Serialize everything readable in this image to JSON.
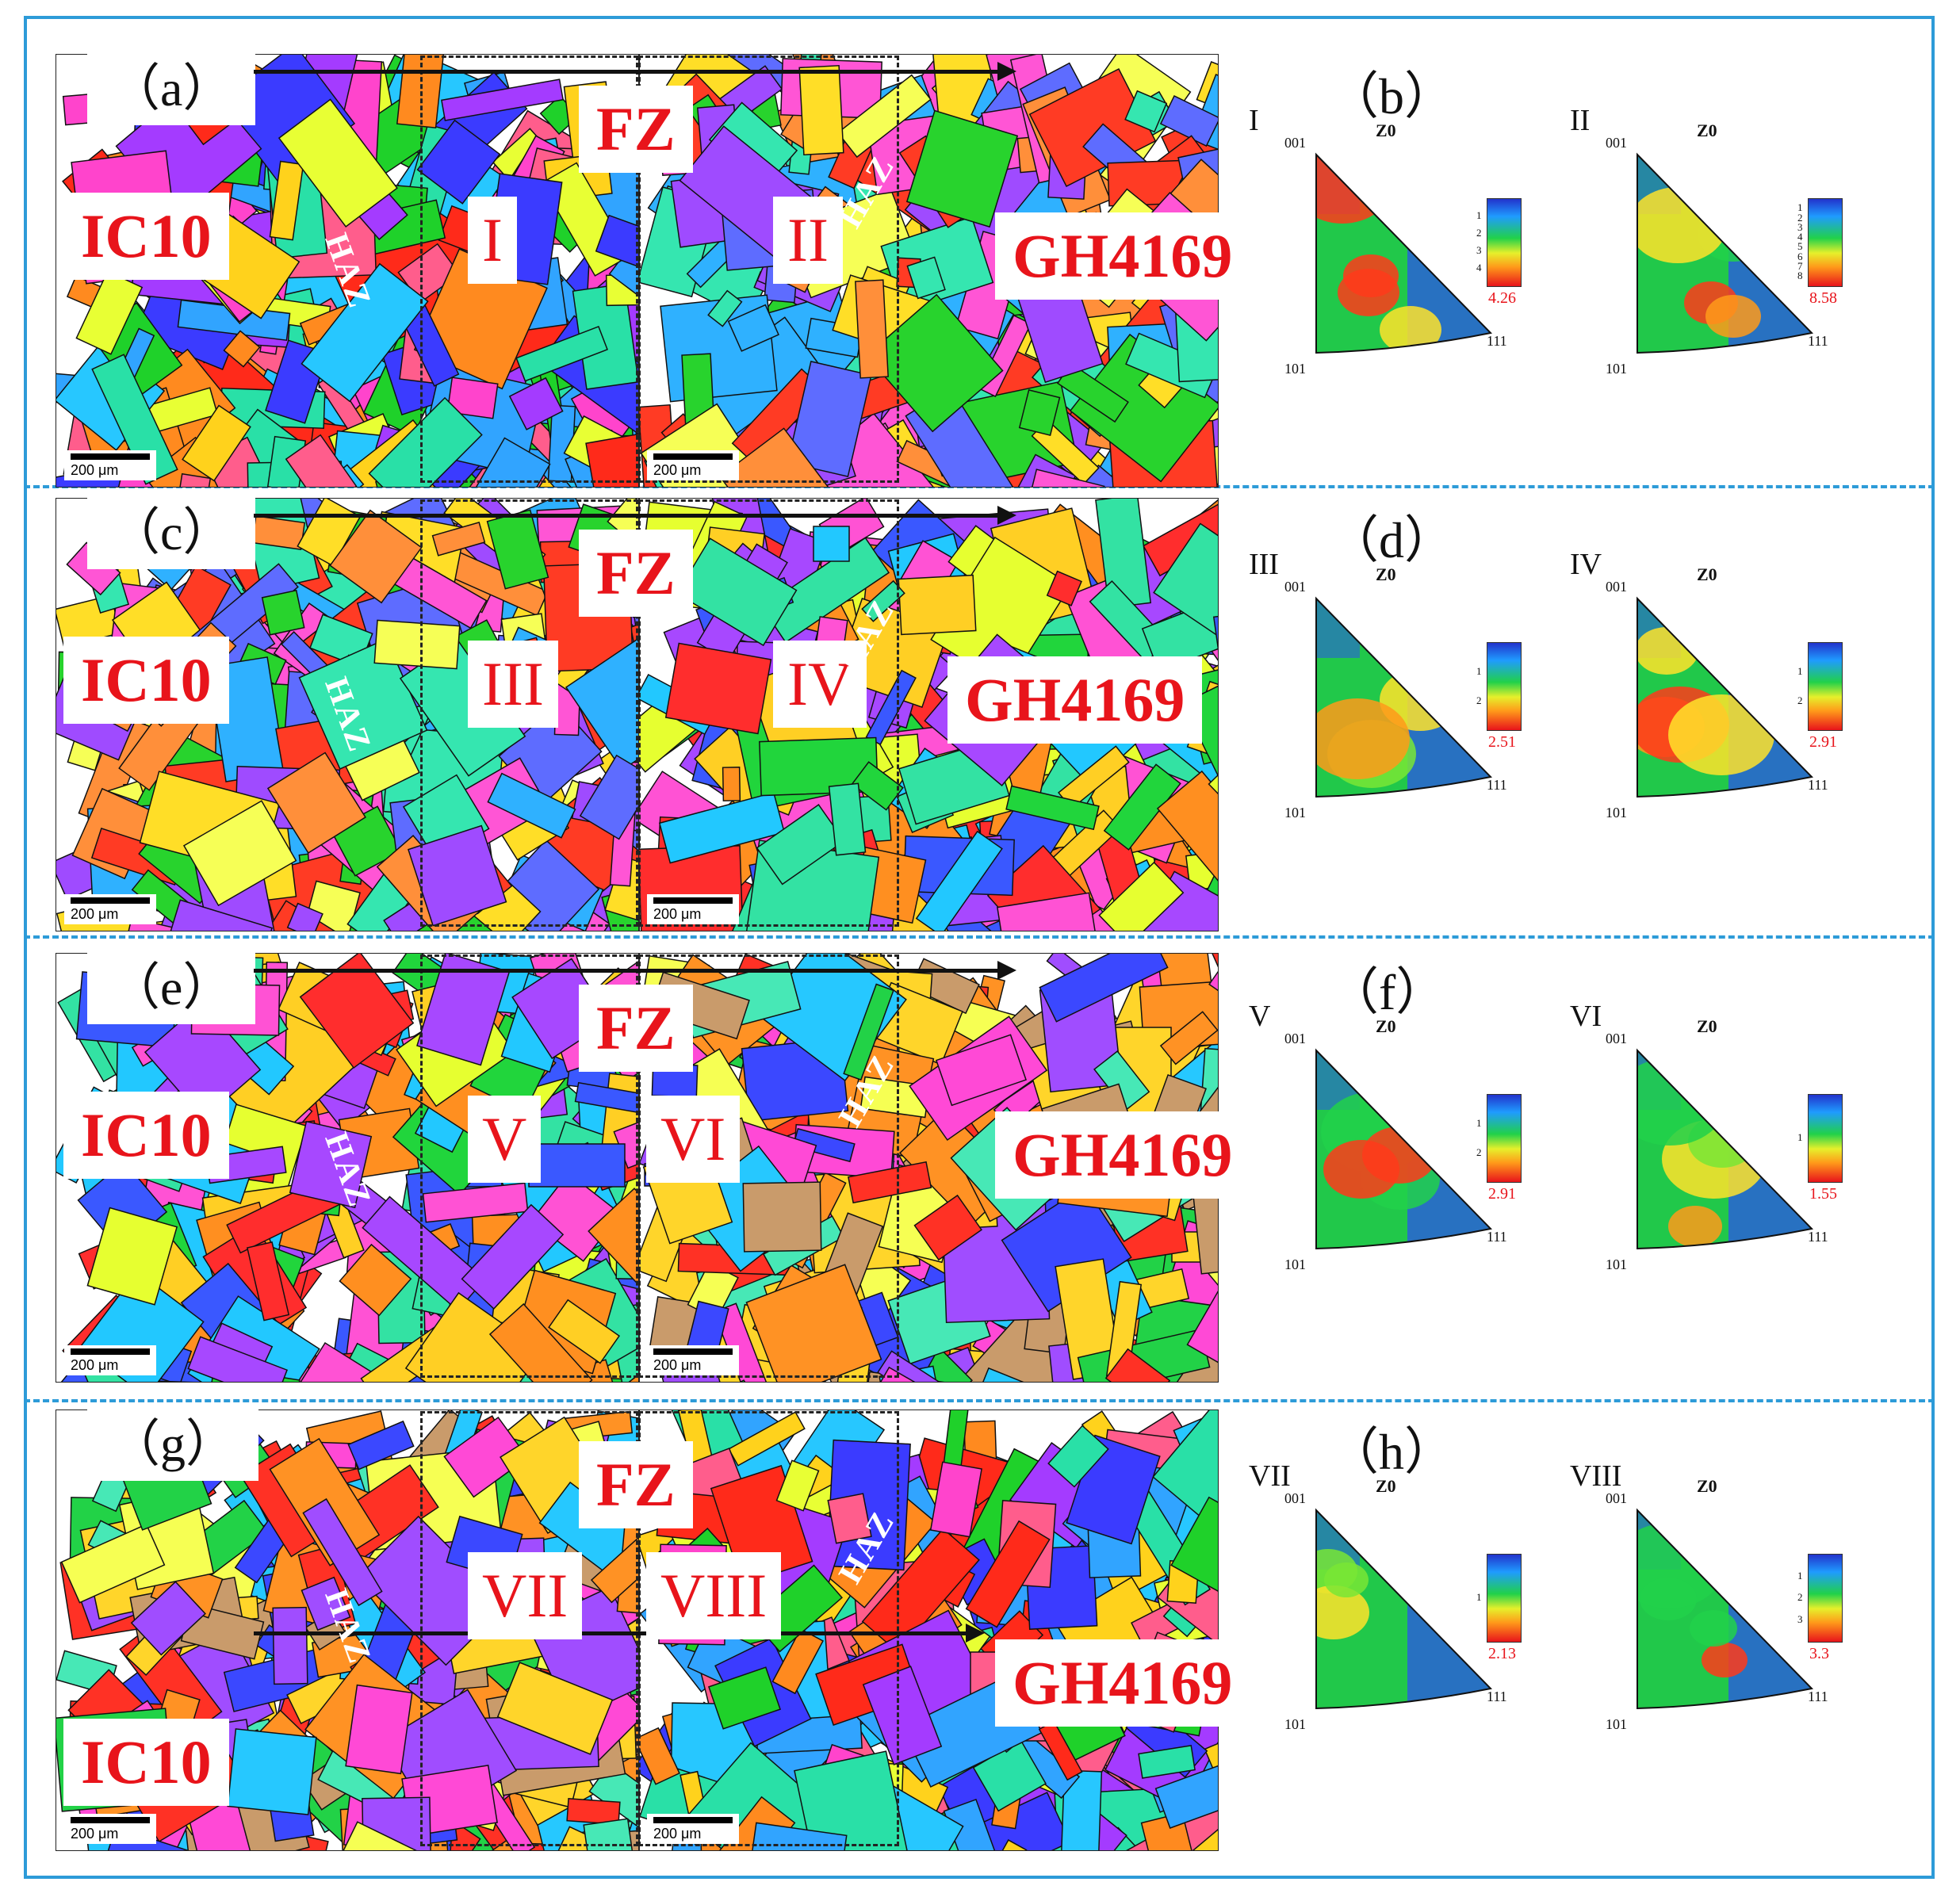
{
  "panels": [
    {
      "label": "（a）",
      "fz": "FZ",
      "left_alloy": "IC10",
      "right_alloy": "GH4169",
      "region_left": "I",
      "region_right": "II",
      "haz_left": "HAZ",
      "haz_right": "HAZ",
      "scale": "200 μm",
      "scale2": "200 μm"
    },
    {
      "label": "（c）",
      "fz": "FZ",
      "left_alloy": "IC10",
      "right_alloy": "GH4169",
      "region_left": "III",
      "region_right": "IV",
      "haz_left": "HAZ",
      "haz_right": "HAZ",
      "scale": "200 μm",
      "scale2": "200 μm"
    },
    {
      "label": "（e）",
      "fz": "FZ",
      "left_alloy": "IC10",
      "right_alloy": "GH4169",
      "region_left": "V",
      "region_right": "VI",
      "haz_left": "HAZ",
      "haz_right": "HAZ",
      "scale": "200 μm",
      "scale2": "200 μm"
    },
    {
      "label": "（g）",
      "fz": "FZ",
      "left_alloy": "IC10",
      "right_alloy": "GH4169",
      "region_left": "VII",
      "region_right": "VIII",
      "haz_left": "HAZ",
      "haz_right": "HAZ",
      "scale": "200 μm",
      "scale2": "200 μm"
    }
  ],
  "pole_figures": [
    {
      "label": "（b）",
      "left": {
        "roman": "I",
        "max": "4.26",
        "ticks": [
          "1",
          "2",
          "3",
          "4"
        ]
      },
      "right": {
        "roman": "II",
        "max": "8.58",
        "ticks": [
          "1",
          "2",
          "3",
          "4",
          "5",
          "6",
          "7",
          "8"
        ]
      }
    },
    {
      "label": "（d）",
      "left": {
        "roman": "III",
        "max": "2.51",
        "ticks": [
          "1",
          "2"
        ]
      },
      "right": {
        "roman": "IV",
        "max": "2.91",
        "ticks": [
          "1",
          "2"
        ]
      }
    },
    {
      "label": "（f）",
      "left": {
        "roman": "V",
        "max": "2.91",
        "ticks": [
          "1",
          "2"
        ]
      },
      "right": {
        "roman": "VI",
        "max": "1.55",
        "ticks": [
          "1"
        ]
      }
    },
    {
      "label": "（h）",
      "left": {
        "roman": "VII",
        "max": "2.13",
        "ticks": [
          "1"
        ]
      },
      "right": {
        "roman": "VIII",
        "max": "3.3",
        "ticks": [
          "1",
          "2",
          "3"
        ]
      }
    }
  ],
  "ipf_axes": {
    "top": "001",
    "bottom": "101",
    "right": "111",
    "sample": "Z0"
  },
  "colors": {
    "frame": "#2d9bd8",
    "label_red": "#e8141b"
  }
}
